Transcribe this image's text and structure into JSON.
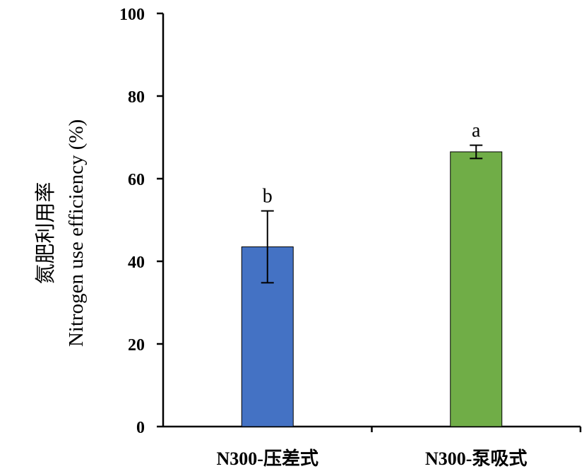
{
  "chart_data": {
    "type": "bar",
    "title": "",
    "ylabel_cn": "氮肥利用率",
    "ylabel_en": "Nitrogen use efficiency (%)",
    "xlabel": "",
    "ylim": [
      0,
      100
    ],
    "yticks": [
      "0",
      "20",
      "40",
      "60",
      "80",
      "100"
    ],
    "categories": [
      "N300-压差式",
      "N300-泵吸式"
    ],
    "values": [
      43.5,
      66.5
    ],
    "errors": [
      8.7,
      1.6
    ],
    "significance": [
      "b",
      "a"
    ],
    "colors": [
      "#4472c4",
      "#70ad47"
    ],
    "grid": false,
    "legend": "none"
  }
}
